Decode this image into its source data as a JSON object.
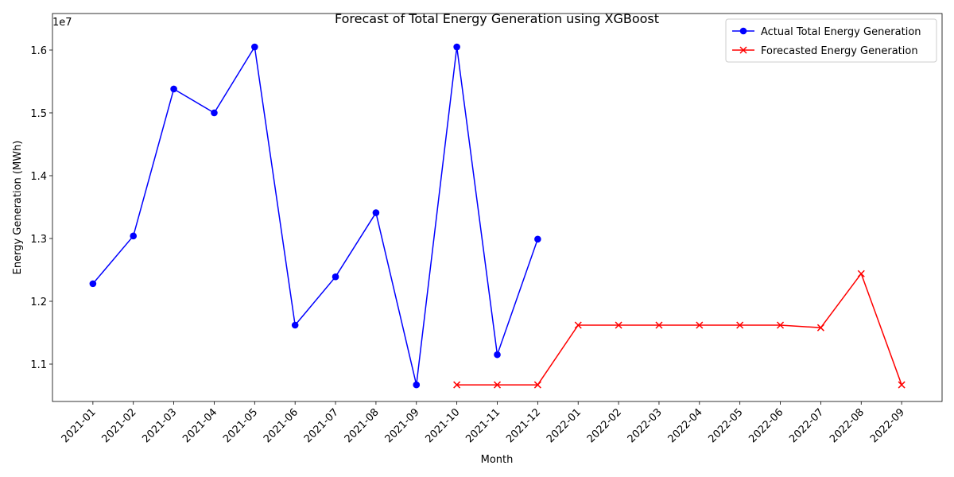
{
  "chart_data": {
    "type": "line",
    "title": "Forecast of Total Energy Generation using XGBoost",
    "xlabel": "Month",
    "ylabel": "Energy Generation (MWh)",
    "y_offset_label": "1e7",
    "categories": [
      "2021-01",
      "2021-02",
      "2021-03",
      "2021-04",
      "2021-05",
      "2021-06",
      "2021-07",
      "2021-08",
      "2021-09",
      "2021-10",
      "2021-11",
      "2021-12",
      "2022-01",
      "2022-02",
      "2022-03",
      "2022-04",
      "2022-05",
      "2022-06",
      "2022-07",
      "2022-08",
      "2022-09"
    ],
    "series": [
      {
        "name": "Actual Total Energy Generation",
        "color": "#0000ff",
        "marker": "o",
        "values": [
          1.228,
          1.304,
          1.538,
          1.5,
          1.605,
          1.162,
          1.239,
          1.341,
          1.067,
          1.605,
          1.115,
          1.299,
          null,
          null,
          null,
          null,
          null,
          null,
          null,
          null,
          null
        ]
      },
      {
        "name": "Forecasted Energy Generation",
        "color": "#ff0000",
        "marker": "x",
        "values": [
          null,
          null,
          null,
          null,
          null,
          null,
          null,
          null,
          null,
          1.067,
          1.067,
          1.067,
          1.162,
          1.162,
          1.162,
          1.162,
          1.162,
          1.162,
          1.158,
          1.244,
          1.067
        ]
      }
    ],
    "ylim": [
      1.0405,
      1.6582
    ],
    "yticks": [
      1.1,
      1.2,
      1.3,
      1.4,
      1.5,
      1.6
    ],
    "grid": false,
    "legend": "upper right"
  }
}
